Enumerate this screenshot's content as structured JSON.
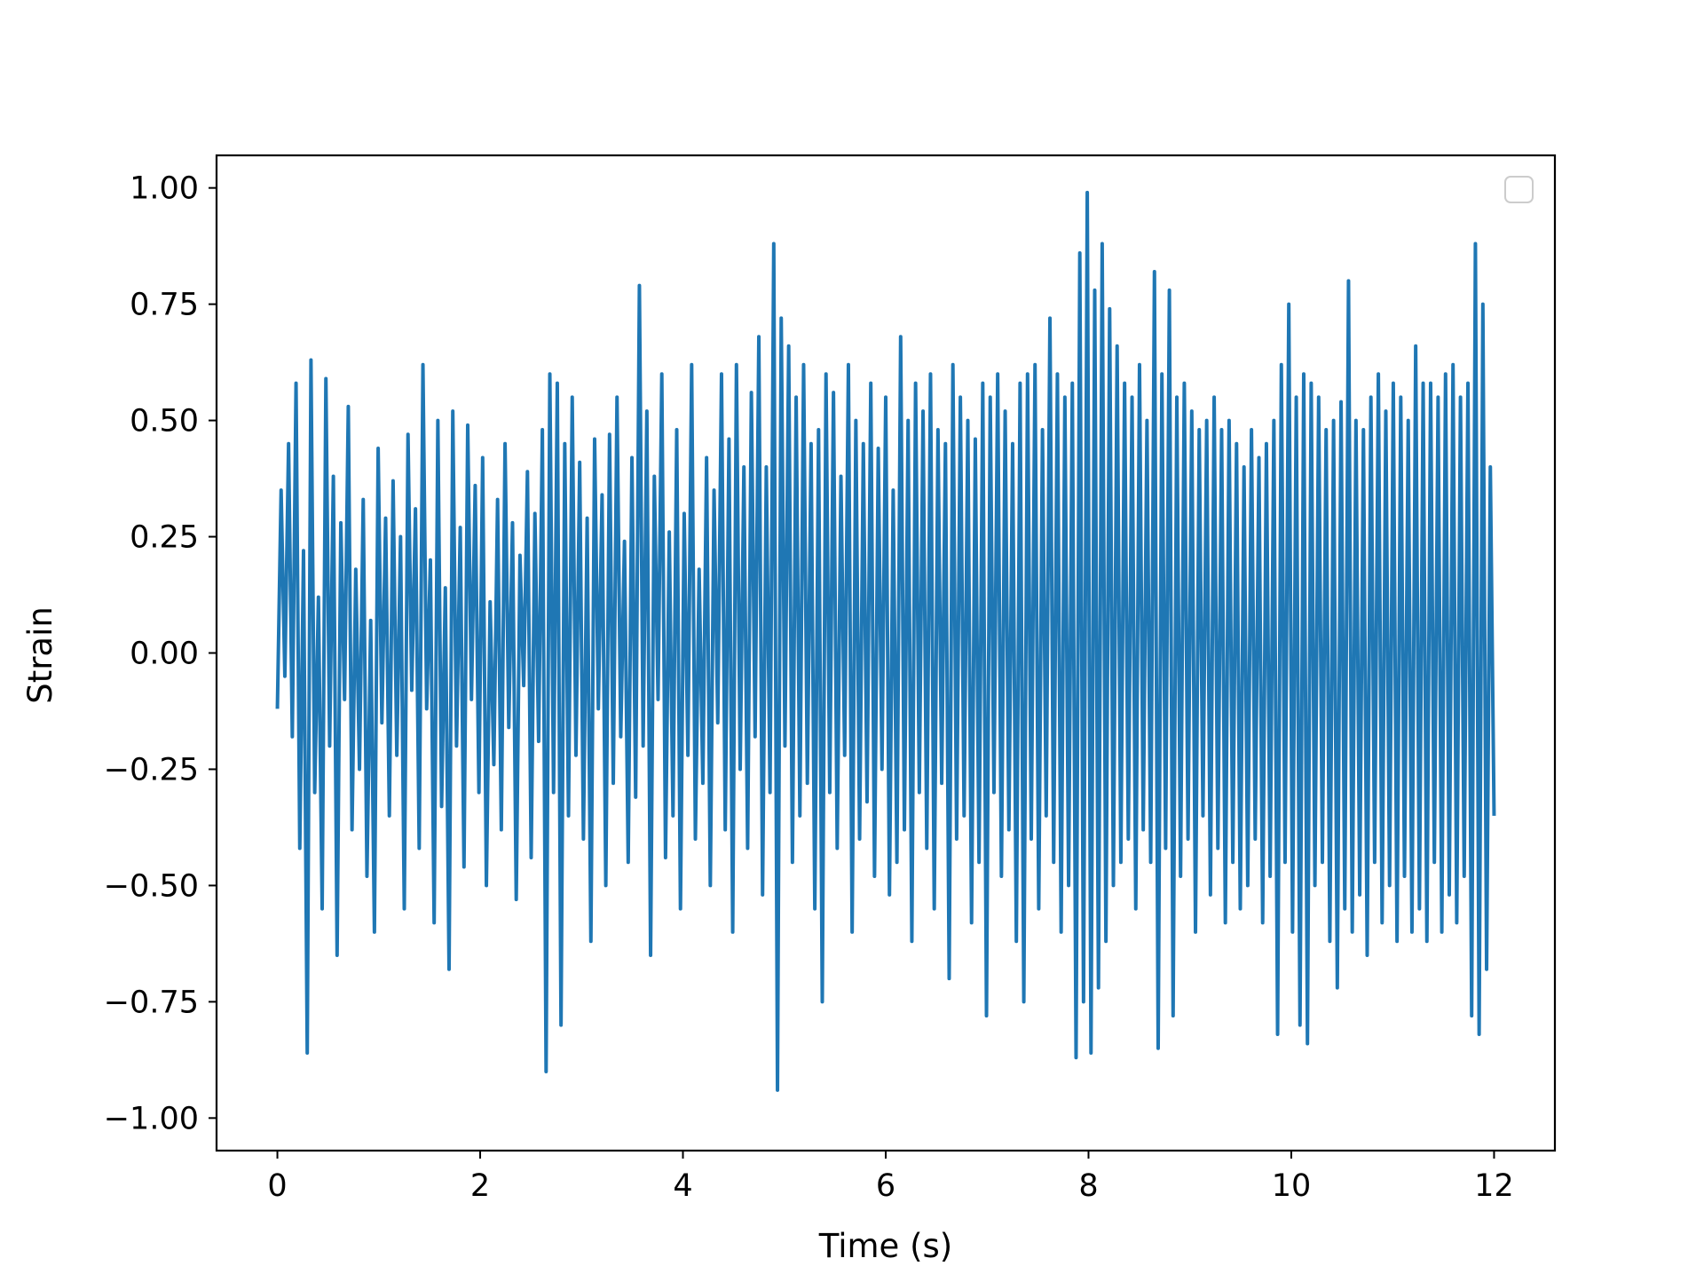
{
  "chart_data": {
    "type": "line",
    "title": "",
    "xlabel": "Time (s)",
    "ylabel": "Strain",
    "xlim": [
      -0.6,
      12.6
    ],
    "ylim": [
      -1.07,
      1.07
    ],
    "x_ticks": [
      0,
      2,
      4,
      6,
      8,
      10,
      12
    ],
    "x_tick_labels": [
      "0",
      "2",
      "4",
      "6",
      "8",
      "10",
      "12"
    ],
    "y_ticks": [
      1.0,
      0.75,
      0.5,
      0.25,
      0.0,
      -0.25,
      -0.5,
      -0.75,
      -1.0
    ],
    "y_tick_labels": [
      "1.00",
      "0.75",
      "0.50",
      "0.25",
      "0.00",
      "−0.25",
      "−0.50",
      "−0.75",
      "−1.00"
    ],
    "grid": false,
    "legend": "top-right",
    "legend_entries": [],
    "series_color": "#1f77b4",
    "series": [
      {
        "x_start": 0,
        "x_end": 12,
        "values": [
          -0.12,
          0.35,
          -0.05,
          0.45,
          -0.18,
          0.58,
          -0.42,
          0.22,
          -0.86,
          0.63,
          -0.3,
          0.12,
          -0.55,
          0.59,
          -0.2,
          0.38,
          -0.65,
          0.28,
          -0.1,
          0.53,
          -0.38,
          0.18,
          -0.25,
          0.33,
          -0.48,
          0.07,
          -0.6,
          0.44,
          -0.15,
          0.29,
          -0.35,
          0.37,
          -0.22,
          0.25,
          -0.55,
          0.47,
          -0.08,
          0.31,
          -0.42,
          0.62,
          -0.12,
          0.2,
          -0.58,
          0.5,
          -0.33,
          0.14,
          -0.68,
          0.52,
          -0.2,
          0.27,
          -0.46,
          0.49,
          -0.1,
          0.36,
          -0.3,
          0.42,
          -0.5,
          0.11,
          -0.24,
          0.33,
          -0.38,
          0.45,
          -0.16,
          0.28,
          -0.53,
          0.21,
          -0.07,
          0.39,
          -0.44,
          0.3,
          -0.19,
          0.48,
          -0.9,
          0.6,
          -0.3,
          0.58,
          -0.8,
          0.45,
          -0.35,
          0.55,
          -0.22,
          0.41,
          -0.4,
          0.29,
          -0.62,
          0.46,
          -0.12,
          0.34,
          -0.5,
          0.47,
          -0.28,
          0.55,
          -0.18,
          0.24,
          -0.45,
          0.42,
          -0.31,
          0.79,
          -0.2,
          0.52,
          -0.65,
          0.38,
          -0.1,
          0.6,
          -0.44,
          0.26,
          -0.35,
          0.48,
          -0.55,
          0.3,
          -0.22,
          0.62,
          -0.4,
          0.18,
          -0.28,
          0.42,
          -0.5,
          0.35,
          -0.15,
          0.6,
          -0.38,
          0.46,
          -0.6,
          0.62,
          -0.25,
          0.4,
          -0.42,
          0.56,
          -0.18,
          0.68,
          -0.52,
          0.4,
          -0.3,
          0.88,
          -0.94,
          0.72,
          -0.2,
          0.66,
          -0.45,
          0.55,
          -0.35,
          0.62,
          -0.28,
          0.45,
          -0.55,
          0.48,
          -0.75,
          0.6,
          -0.3,
          0.56,
          -0.42,
          0.38,
          -0.22,
          0.62,
          -0.6,
          0.5,
          -0.4,
          0.45,
          -0.32,
          0.58,
          -0.48,
          0.44,
          -0.25,
          0.55,
          -0.52,
          0.35,
          -0.45,
          0.68,
          -0.38,
          0.5,
          -0.62,
          0.58,
          -0.3,
          0.52,
          -0.42,
          0.6,
          -0.55,
          0.48,
          -0.28,
          0.45,
          -0.7,
          0.62,
          -0.4,
          0.55,
          -0.35,
          0.5,
          -0.58,
          0.46,
          -0.45,
          0.58,
          -0.78,
          0.55,
          -0.3,
          0.6,
          -0.48,
          0.52,
          -0.38,
          0.45,
          -0.62,
          0.58,
          -0.75,
          0.6,
          -0.4,
          0.62,
          -0.55,
          0.48,
          -0.35,
          0.72,
          -0.45,
          0.6,
          -0.6,
          0.55,
          -0.5,
          0.58,
          -0.87,
          0.86,
          -0.75,
          0.99,
          -0.86,
          0.78,
          -0.72,
          0.88,
          -0.62,
          0.74,
          -0.5,
          0.66,
          -0.45,
          0.58,
          -0.4,
          0.55,
          -0.55,
          0.62,
          -0.38,
          0.5,
          -0.45,
          0.82,
          -0.85,
          0.6,
          -0.42,
          0.78,
          -0.78,
          0.55,
          -0.48,
          0.58,
          -0.4,
          0.52,
          -0.6,
          0.48,
          -0.35,
          0.5,
          -0.52,
          0.55,
          -0.42,
          0.48,
          -0.58,
          0.5,
          -0.45,
          0.45,
          -0.55,
          0.4,
          -0.5,
          0.48,
          -0.4,
          0.42,
          -0.58,
          0.45,
          -0.48,
          0.5,
          -0.82,
          0.62,
          -0.45,
          0.75,
          -0.6,
          0.55,
          -0.8,
          0.6,
          -0.84,
          0.58,
          -0.5,
          0.55,
          -0.45,
          0.48,
          -0.62,
          0.5,
          -0.72,
          0.54,
          -0.55,
          0.8,
          -0.6,
          0.5,
          -0.52,
          0.48,
          -0.65,
          0.55,
          -0.45,
          0.6,
          -0.58,
          0.52,
          -0.5,
          0.58,
          -0.62,
          0.55,
          -0.48,
          0.5,
          -0.6,
          0.66,
          -0.55,
          0.58,
          -0.62,
          0.58,
          -0.45,
          0.55,
          -0.6,
          0.6,
          -0.52,
          0.62,
          -0.58,
          0.55,
          -0.48,
          0.58,
          -0.78,
          0.88,
          -0.82,
          0.75,
          -0.68,
          0.4,
          -0.35
        ]
      }
    ]
  }
}
